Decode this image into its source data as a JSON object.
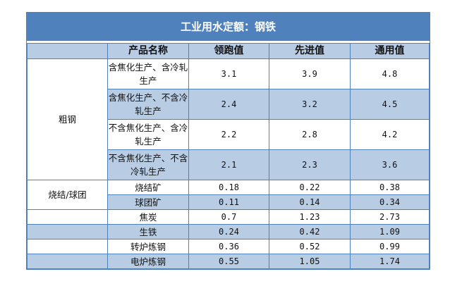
{
  "title": "工业用水定额：钢铁",
  "headers": [
    "",
    "产品名称",
    "领跑值",
    "先进值",
    "通用值"
  ],
  "groups": {
    "crude_steel": "粗钢",
    "sinter_pellet": "烧结/球团"
  },
  "rows": [
    {
      "product": "含焦化生产、含冷轧生产",
      "lead": "3.1",
      "advanced": "3.9",
      "general": "4.8"
    },
    {
      "product": "含焦化生产、不含冷轧生产",
      "lead": "2.4",
      "advanced": "3.2",
      "general": "4.5"
    },
    {
      "product": "不含焦化生产、含冷轧生产",
      "lead": "2.2",
      "advanced": "2.8",
      "general": "4.2"
    },
    {
      "product": "不含焦化生产、不含冷轧生产",
      "lead": "2.1",
      "advanced": "2.3",
      "general": "3.6"
    },
    {
      "product": "烧结矿",
      "lead": "0.18",
      "advanced": "0.22",
      "general": "0.38"
    },
    {
      "product": "球团矿",
      "lead": "0.11",
      "advanced": "0.14",
      "general": "0.34"
    },
    {
      "product": "焦炭",
      "lead": "0.7",
      "advanced": "1.23",
      "general": "2.73"
    },
    {
      "product": "生铁",
      "lead": "0.24",
      "advanced": "0.42",
      "general": "1.09"
    },
    {
      "product": "转炉炼钢",
      "lead": "0.36",
      "advanced": "0.52",
      "general": "0.99"
    },
    {
      "product": "电炉炼钢",
      "lead": "0.55",
      "advanced": "1.05",
      "general": "1.74"
    }
  ]
}
